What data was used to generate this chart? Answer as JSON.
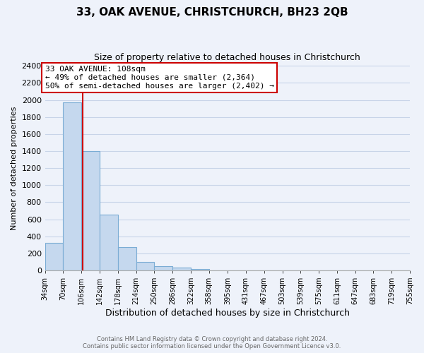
{
  "title": "33, OAK AVENUE, CHRISTCHURCH, BH23 2QB",
  "subtitle": "Size of property relative to detached houses in Christchurch",
  "xlabel": "Distribution of detached houses by size in Christchurch",
  "ylabel": "Number of detached properties",
  "bar_edges": [
    34,
    70,
    106,
    142,
    178,
    214,
    250,
    286,
    322,
    358,
    395,
    431,
    467,
    503,
    539,
    575,
    611,
    647,
    683,
    719,
    755
  ],
  "bar_heights": [
    325,
    1975,
    1400,
    650,
    275,
    100,
    45,
    30,
    20,
    0,
    0,
    0,
    0,
    0,
    0,
    0,
    0,
    0,
    0,
    0
  ],
  "bar_color": "#c5d8ee",
  "bar_edge_color": "#7aacd4",
  "property_line_x": 108,
  "property_line_color": "#cc0000",
  "annotation_text_line1": "33 OAK AVENUE: 108sqm",
  "annotation_text_line2": "← 49% of detached houses are smaller (2,364)",
  "annotation_text_line3": "50% of semi-detached houses are larger (2,402) →",
  "annotation_box_color": "#ffffff",
  "annotation_box_edgecolor": "#cc0000",
  "ylim": [
    0,
    2400
  ],
  "xlim": [
    34,
    755
  ],
  "tick_labels": [
    "34sqm",
    "70sqm",
    "106sqm",
    "142sqm",
    "178sqm",
    "214sqm",
    "250sqm",
    "286sqm",
    "322sqm",
    "358sqm",
    "395sqm",
    "431sqm",
    "467sqm",
    "503sqm",
    "539sqm",
    "575sqm",
    "611sqm",
    "647sqm",
    "683sqm",
    "719sqm",
    "755sqm"
  ],
  "grid_color": "#c8d4e8",
  "background_color": "#eef2fa",
  "footer_line1": "Contains HM Land Registry data © Crown copyright and database right 2024.",
  "footer_line2": "Contains public sector information licensed under the Open Government Licence v3.0."
}
